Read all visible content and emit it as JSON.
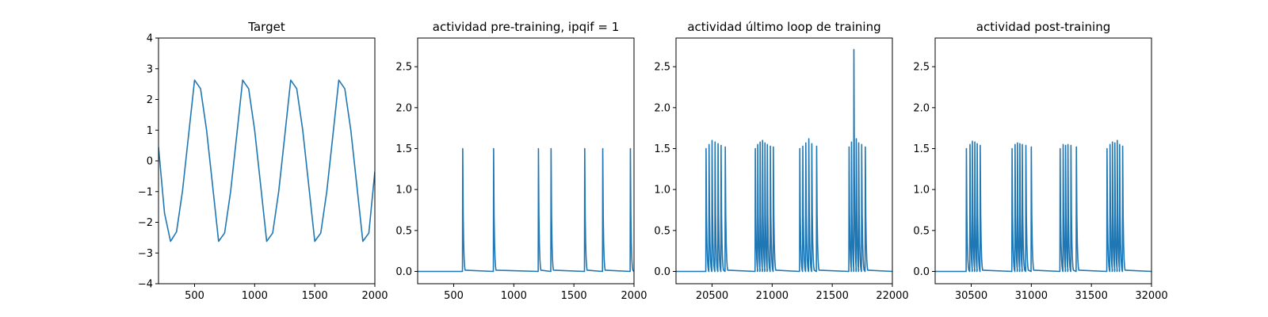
{
  "chart_data": [
    {
      "type": "line",
      "title": "Target",
      "xlabel": "",
      "ylabel": "",
      "xlim": [
        200,
        2000
      ],
      "ylim": [
        -4,
        4
      ],
      "xticks": [
        500,
        1000,
        1500,
        2000
      ],
      "yticks": [
        -4,
        -3,
        -2,
        -1,
        0,
        1,
        2,
        3,
        4
      ],
      "xtick_labels": [
        "500",
        "1000",
        "1500",
        "2000"
      ],
      "ytick_labels": [
        "−4",
        "−3",
        "−2",
        "−1",
        "0",
        "1",
        "2",
        "3",
        "4"
      ],
      "grid": false,
      "series": [
        {
          "color": "#1f77b4",
          "points": [
            [
              200,
              0.45
            ],
            [
              250,
              -1.7
            ],
            [
              300,
              -2.62
            ],
            [
              350,
              -2.31
            ],
            [
              400,
              -0.97
            ],
            [
              450,
              0.83
            ],
            [
              500,
              2.63
            ],
            [
              550,
              2.35
            ],
            [
              600,
              1.0
            ],
            [
              650,
              -0.8
            ],
            [
              700,
              -2.62
            ],
            [
              750,
              -2.35
            ],
            [
              800,
              -1.0
            ],
            [
              850,
              0.8
            ],
            [
              900,
              2.63
            ],
            [
              950,
              2.35
            ],
            [
              1000,
              1.0
            ],
            [
              1050,
              -0.8
            ],
            [
              1100,
              -2.62
            ],
            [
              1150,
              -2.35
            ],
            [
              1200,
              -1.0
            ],
            [
              1250,
              0.8
            ],
            [
              1300,
              2.63
            ],
            [
              1350,
              2.35
            ],
            [
              1400,
              1.0
            ],
            [
              1450,
              -0.8
            ],
            [
              1500,
              -2.62
            ],
            [
              1550,
              -2.35
            ],
            [
              1600,
              -1.0
            ],
            [
              1650,
              0.8
            ],
            [
              1700,
              2.63
            ],
            [
              1750,
              2.35
            ],
            [
              1800,
              1.0
            ],
            [
              1850,
              -0.8
            ],
            [
              1900,
              -2.62
            ],
            [
              1950,
              -2.35
            ],
            [
              2000,
              -0.35
            ]
          ]
        }
      ]
    },
    {
      "type": "line",
      "title": "actividad pre-training, ipqif = 1",
      "xlabel": "",
      "ylabel": "",
      "xlim": [
        200,
        2000
      ],
      "ylim": [
        -0.15,
        2.85
      ],
      "xticks": [
        500,
        1000,
        1500,
        2000
      ],
      "yticks": [
        0.0,
        0.5,
        1.0,
        1.5,
        2.0,
        2.5
      ],
      "xtick_labels": [
        "500",
        "1000",
        "1500",
        "2000"
      ],
      "ytick_labels": [
        "0.0",
        "0.5",
        "1.0",
        "1.5",
        "2.0",
        "2.5"
      ],
      "grid": false,
      "baseline": 0.0,
      "spikes": [
        {
          "x": 575,
          "peak": 1.5
        },
        {
          "x": 832,
          "peak": 1.5
        },
        {
          "x": 1205,
          "peak": 1.5
        },
        {
          "x": 1310,
          "peak": 1.5
        },
        {
          "x": 1590,
          "peak": 1.5
        },
        {
          "x": 1740,
          "peak": 1.5
        },
        {
          "x": 1970,
          "peak": 1.5
        }
      ]
    },
    {
      "type": "line",
      "title": "actividad último loop de training",
      "xlabel": "",
      "ylabel": "",
      "xlim": [
        20200,
        22000
      ],
      "ylim": [
        -0.15,
        2.85
      ],
      "xticks": [
        20500,
        21000,
        21500,
        22000
      ],
      "yticks": [
        0.0,
        0.5,
        1.0,
        1.5,
        2.0,
        2.5
      ],
      "xtick_labels": [
        "20500",
        "21000",
        "21500",
        "22000"
      ],
      "ytick_labels": [
        "0.0",
        "0.5",
        "1.0",
        "1.5",
        "2.0",
        "2.5"
      ],
      "grid": false,
      "baseline": 0.0,
      "spikes": [
        {
          "x": 20450,
          "peak": 1.5
        },
        {
          "x": 20475,
          "peak": 1.55
        },
        {
          "x": 20500,
          "peak": 1.6
        },
        {
          "x": 20525,
          "peak": 1.58
        },
        {
          "x": 20550,
          "peak": 1.56
        },
        {
          "x": 20575,
          "peak": 1.54
        },
        {
          "x": 20610,
          "peak": 1.52
        },
        {
          "x": 20860,
          "peak": 1.5
        },
        {
          "x": 20880,
          "peak": 1.55
        },
        {
          "x": 20900,
          "peak": 1.58
        },
        {
          "x": 20920,
          "peak": 1.6
        },
        {
          "x": 20940,
          "peak": 1.57
        },
        {
          "x": 20960,
          "peak": 1.55
        },
        {
          "x": 20985,
          "peak": 1.53
        },
        {
          "x": 21010,
          "peak": 1.52
        },
        {
          "x": 21230,
          "peak": 1.5
        },
        {
          "x": 21255,
          "peak": 1.53
        },
        {
          "x": 21280,
          "peak": 1.57
        },
        {
          "x": 21305,
          "peak": 1.62
        },
        {
          "x": 21330,
          "peak": 1.56
        },
        {
          "x": 21370,
          "peak": 1.53
        },
        {
          "x": 21640,
          "peak": 1.52
        },
        {
          "x": 21660,
          "peak": 1.58
        },
        {
          "x": 21680,
          "peak": 2.71
        },
        {
          "x": 21700,
          "peak": 1.62
        },
        {
          "x": 21720,
          "peak": 1.57
        },
        {
          "x": 21745,
          "peak": 1.55
        },
        {
          "x": 21775,
          "peak": 1.52
        }
      ]
    },
    {
      "type": "line",
      "title": "actividad post-training",
      "xlabel": "",
      "ylabel": "",
      "xlim": [
        30200,
        32000
      ],
      "ylim": [
        -0.15,
        2.85
      ],
      "xticks": [
        30500,
        31000,
        31500,
        32000
      ],
      "yticks": [
        0.0,
        0.5,
        1.0,
        1.5,
        2.0,
        2.5
      ],
      "xtick_labels": [
        "30500",
        "31000",
        "31500",
        "32000"
      ],
      "ytick_labels": [
        "0.0",
        "0.5",
        "1.0",
        "1.5",
        "2.0",
        "2.5"
      ],
      "grid": false,
      "baseline": 0.0,
      "spikes": [
        {
          "x": 30460,
          "peak": 1.5
        },
        {
          "x": 30490,
          "peak": 1.55
        },
        {
          "x": 30510,
          "peak": 1.59
        },
        {
          "x": 30530,
          "peak": 1.58
        },
        {
          "x": 30550,
          "peak": 1.56
        },
        {
          "x": 30575,
          "peak": 1.54
        },
        {
          "x": 30840,
          "peak": 1.5
        },
        {
          "x": 30865,
          "peak": 1.55
        },
        {
          "x": 30885,
          "peak": 1.57
        },
        {
          "x": 30905,
          "peak": 1.56
        },
        {
          "x": 30925,
          "peak": 1.55
        },
        {
          "x": 30955,
          "peak": 1.54
        },
        {
          "x": 31000,
          "peak": 1.52
        },
        {
          "x": 31240,
          "peak": 1.5
        },
        {
          "x": 31265,
          "peak": 1.55
        },
        {
          "x": 31285,
          "peak": 1.54
        },
        {
          "x": 31305,
          "peak": 1.55
        },
        {
          "x": 31330,
          "peak": 1.54
        },
        {
          "x": 31375,
          "peak": 1.52
        },
        {
          "x": 31630,
          "peak": 1.5
        },
        {
          "x": 31655,
          "peak": 1.55
        },
        {
          "x": 31675,
          "peak": 1.58
        },
        {
          "x": 31695,
          "peak": 1.57
        },
        {
          "x": 31715,
          "peak": 1.6
        },
        {
          "x": 31735,
          "peak": 1.55
        },
        {
          "x": 31760,
          "peak": 1.53
        }
      ]
    }
  ]
}
